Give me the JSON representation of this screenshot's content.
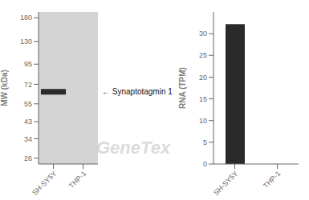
{
  "chart_data": [
    {
      "type": "blot",
      "categories": [
        "SH-SY5Y",
        "THP-1"
      ],
      "values": [
        65,
        null
      ],
      "y_label": "MW (kDa)",
      "log": "y",
      "ylim": [
        24,
        195
      ],
      "yticks": [
        180,
        130,
        95,
        72,
        55,
        43,
        34,
        26
      ],
      "annotation": "← Synaptotagmin 1",
      "colors": [
        "#d4d4d4",
        "#2a2a2a"
      ]
    },
    {
      "type": "bar",
      "categories": [
        "SH-SY5Y",
        "THP-1"
      ],
      "values": [
        32.2,
        0.0
      ],
      "color": "#2a2a2a",
      "y_label": "RNA (TPM)",
      "ylim": [
        0,
        35
      ],
      "yticks": [
        0,
        5,
        10,
        15,
        20,
        25,
        30
      ]
    }
  ],
  "watermark": {
    "text": "GeneTex",
    "color": "#cccccc"
  }
}
